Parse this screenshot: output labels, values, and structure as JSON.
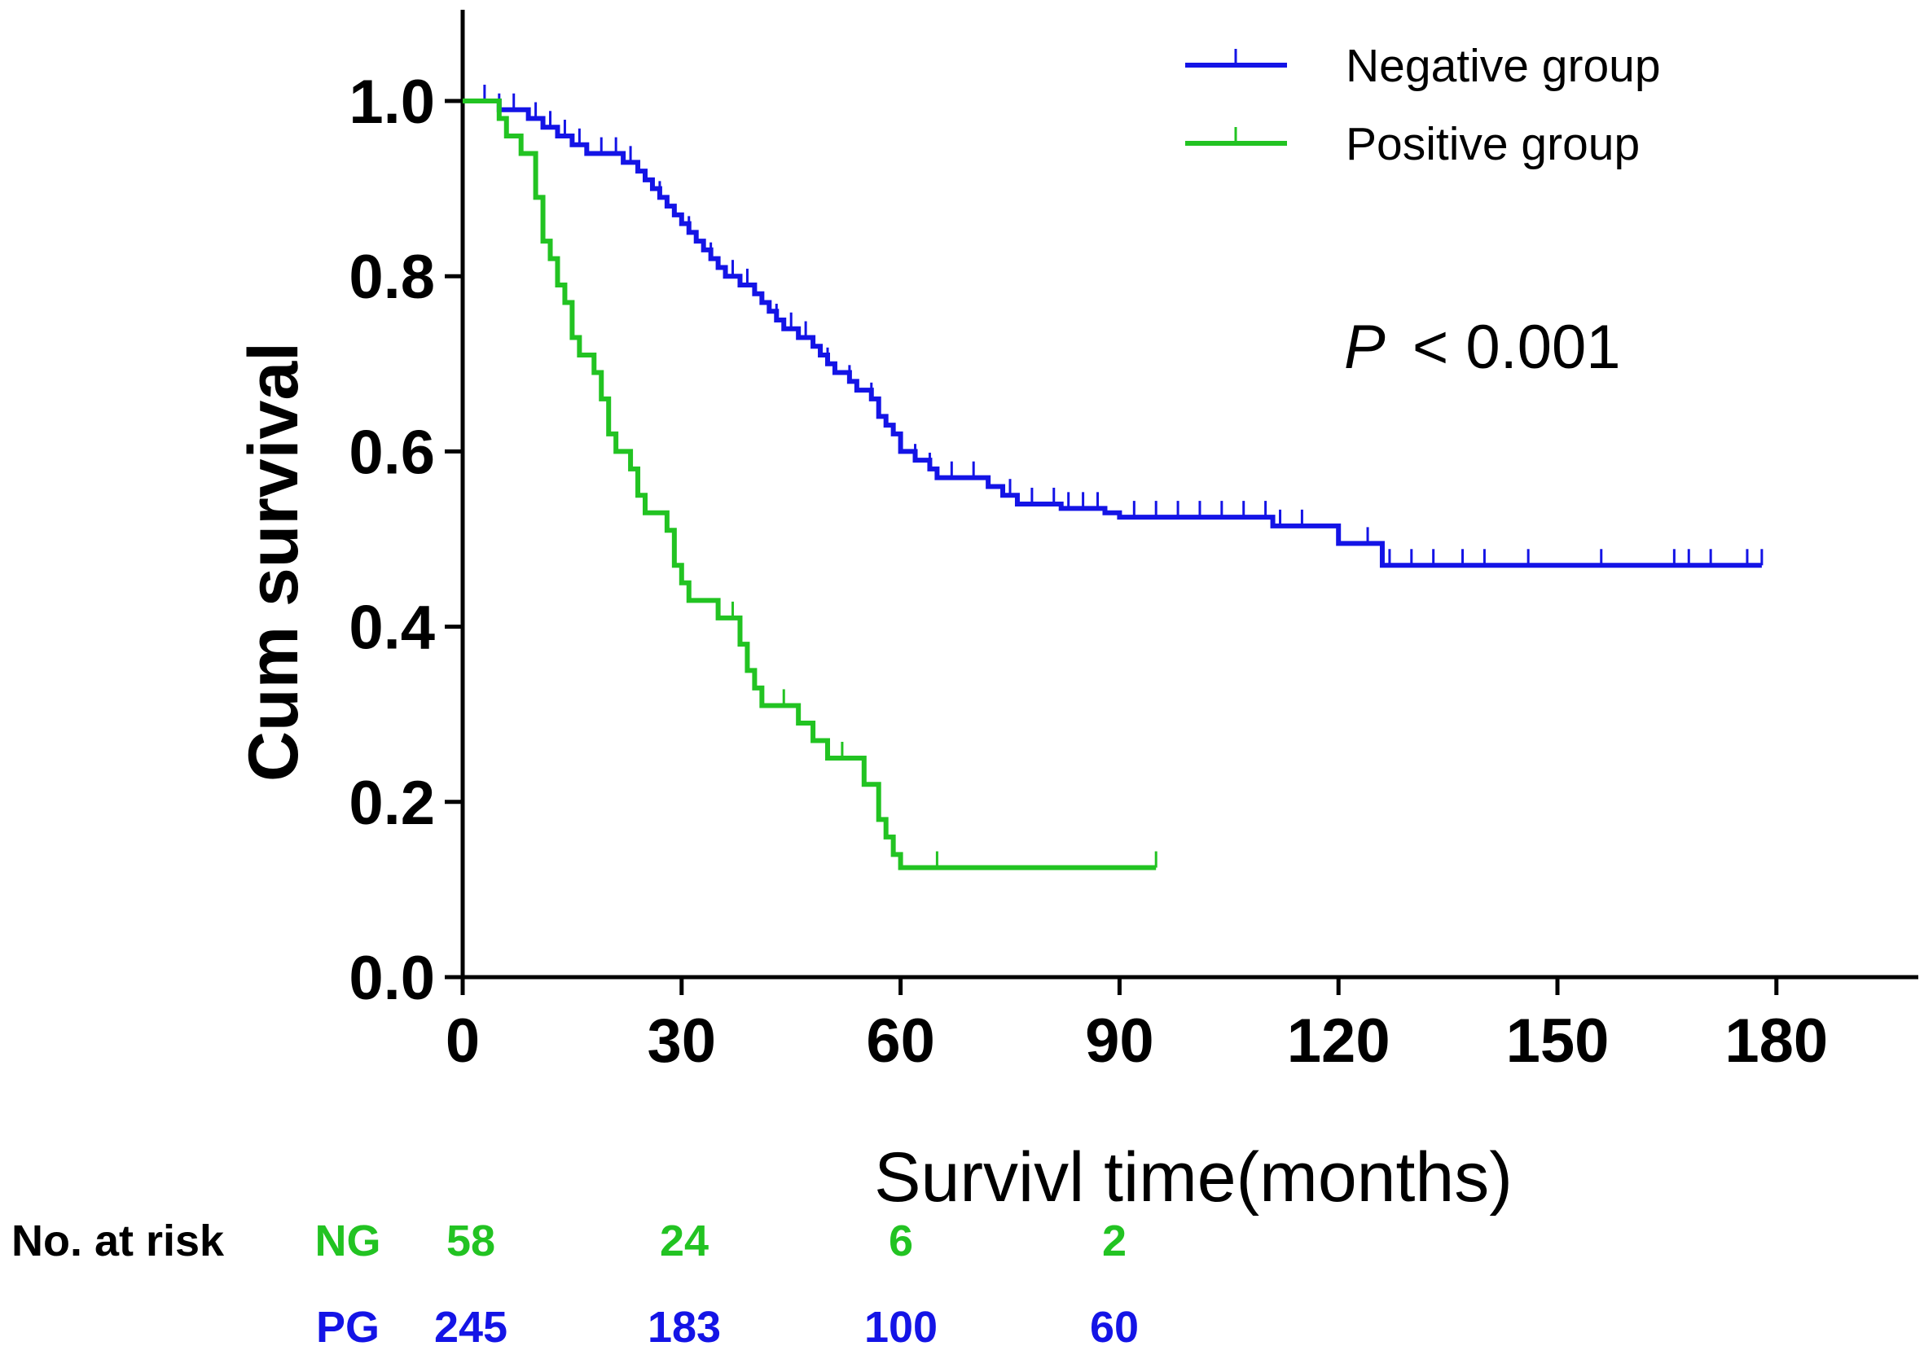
{
  "chart_data": {
    "type": "line",
    "subtype": "kaplan-meier",
    "title": "",
    "xlabel": "Survivl time(months)",
    "ylabel": "Cum survival",
    "xlim": [
      0,
      198
    ],
    "ylim": [
      0,
      1.1
    ],
    "x_ticks": [
      0,
      30,
      60,
      90,
      120,
      150,
      180
    ],
    "y_ticks": [
      0.0,
      0.2,
      0.4,
      0.6,
      0.8,
      1.0
    ],
    "y_tick_labels": [
      "0.0",
      "0.2",
      "0.4",
      "0.6",
      "0.8",
      "1.0"
    ],
    "annotation": {
      "p_label": "P",
      "p_text": "<  0.001"
    },
    "legend_position": "top-right",
    "series": [
      {
        "name": "Negative group",
        "color": "#1414e6",
        "steps": [
          [
            0,
            1.0
          ],
          [
            5,
            0.99
          ],
          [
            9,
            0.98
          ],
          [
            11,
            0.97
          ],
          [
            13,
            0.96
          ],
          [
            15,
            0.95
          ],
          [
            17,
            0.94
          ],
          [
            22,
            0.93
          ],
          [
            24,
            0.92
          ],
          [
            25,
            0.91
          ],
          [
            26,
            0.9
          ],
          [
            27,
            0.89
          ],
          [
            28,
            0.88
          ],
          [
            29,
            0.87
          ],
          [
            30,
            0.86
          ],
          [
            31,
            0.85
          ],
          [
            32,
            0.84
          ],
          [
            33,
            0.83
          ],
          [
            34,
            0.82
          ],
          [
            35,
            0.81
          ],
          [
            36,
            0.8
          ],
          [
            38,
            0.79
          ],
          [
            40,
            0.78
          ],
          [
            41,
            0.77
          ],
          [
            42,
            0.76
          ],
          [
            43,
            0.75
          ],
          [
            44,
            0.74
          ],
          [
            46,
            0.73
          ],
          [
            48,
            0.72
          ],
          [
            49,
            0.71
          ],
          [
            50,
            0.7
          ],
          [
            51,
            0.69
          ],
          [
            53,
            0.68
          ],
          [
            54,
            0.67
          ],
          [
            56,
            0.66
          ],
          [
            57,
            0.64
          ],
          [
            58,
            0.63
          ],
          [
            59,
            0.62
          ],
          [
            60,
            0.6
          ],
          [
            62,
            0.59
          ],
          [
            64,
            0.58
          ],
          [
            65,
            0.57
          ],
          [
            72,
            0.56
          ],
          [
            74,
            0.55
          ],
          [
            76,
            0.54
          ],
          [
            82,
            0.535
          ],
          [
            88,
            0.53
          ],
          [
            90,
            0.525
          ],
          [
            111,
            0.515
          ],
          [
            120,
            0.495
          ],
          [
            126,
            0.47
          ],
          [
            178,
            0.47
          ]
        ],
        "censor_x": [
          3,
          5,
          7,
          10,
          12,
          14,
          16,
          19,
          21,
          23,
          27,
          31,
          34,
          37,
          39,
          43,
          45,
          47,
          50,
          53,
          56,
          60,
          62,
          64,
          67,
          70,
          75,
          78,
          81,
          83,
          85,
          87,
          92,
          95,
          98,
          101,
          104,
          107,
          110,
          112,
          115,
          124,
          127,
          130,
          133,
          137,
          140,
          146,
          156,
          166,
          168,
          171,
          176,
          178
        ]
      },
      {
        "name": "Positive group",
        "color": "#22c322",
        "steps": [
          [
            0,
            1.0
          ],
          [
            5,
            0.98
          ],
          [
            6,
            0.96
          ],
          [
            8,
            0.94
          ],
          [
            10,
            0.89
          ],
          [
            11,
            0.84
          ],
          [
            12,
            0.82
          ],
          [
            13,
            0.79
          ],
          [
            14,
            0.77
          ],
          [
            15,
            0.73
          ],
          [
            16,
            0.71
          ],
          [
            18,
            0.69
          ],
          [
            19,
            0.66
          ],
          [
            20,
            0.62
          ],
          [
            21,
            0.6
          ],
          [
            23,
            0.58
          ],
          [
            24,
            0.55
          ],
          [
            25,
            0.53
          ],
          [
            28,
            0.51
          ],
          [
            29,
            0.47
          ],
          [
            30,
            0.45
          ],
          [
            31,
            0.43
          ],
          [
            35,
            0.41
          ],
          [
            38,
            0.38
          ],
          [
            39,
            0.35
          ],
          [
            40,
            0.33
          ],
          [
            41,
            0.31
          ],
          [
            46,
            0.29
          ],
          [
            48,
            0.27
          ],
          [
            50,
            0.25
          ],
          [
            55,
            0.22
          ],
          [
            57,
            0.18
          ],
          [
            58,
            0.16
          ],
          [
            59,
            0.14
          ],
          [
            60,
            0.125
          ],
          [
            95,
            0.125
          ]
        ],
        "censor_x": [
          15,
          37,
          44,
          48,
          52,
          57,
          59,
          65,
          95
        ]
      }
    ],
    "risk_table": {
      "label": "No. at risk",
      "times": [
        0,
        30,
        60,
        90
      ],
      "rows": [
        {
          "name": "NG",
          "color": "#22c322",
          "values": [
            "58",
            "24",
            "6",
            "2"
          ]
        },
        {
          "name": "PG",
          "color": "#1414e6",
          "values": [
            "245",
            "183",
            "100",
            "60"
          ]
        }
      ]
    }
  }
}
